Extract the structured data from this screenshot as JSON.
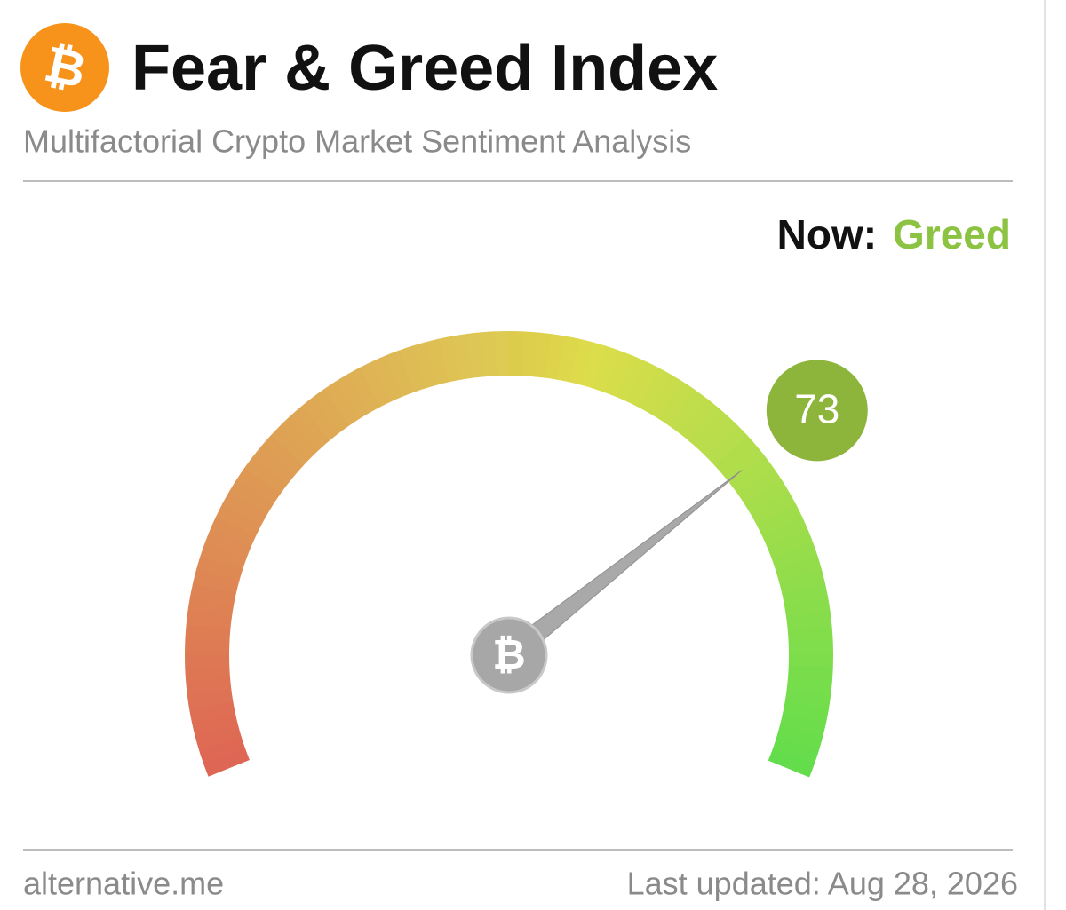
{
  "header": {
    "title": "Fear & Greed Index",
    "subtitle": "Multifactorial Crypto Market Sentiment Analysis"
  },
  "status": {
    "label": "Now:",
    "value": "Greed"
  },
  "chart_data": {
    "type": "gauge",
    "value": 73,
    "ylim": [
      0,
      100
    ],
    "color": "#8db53c"
  },
  "footer": {
    "source": "alternative.me",
    "updated": "Last updated: Aug 28, 2026"
  }
}
